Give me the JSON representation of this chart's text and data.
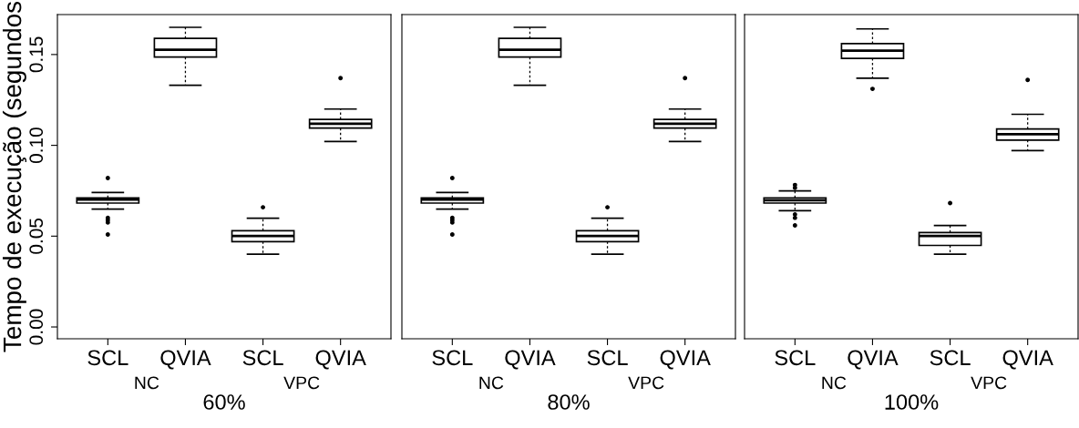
{
  "chart_data": [
    {
      "type": "box",
      "categories": [
        "SCL",
        "QVIA",
        "SCL",
        "QVIA"
      ],
      "xlabel": "60%",
      "ylabel": "Tempo de execução (segundos",
      "annotations": [
        "NC",
        "VPC"
      ],
      "ylim": [
        -0.0065,
        0.172
      ],
      "yticks": [
        {
          "value": 0,
          "label": "0.00"
        },
        {
          "value": 0.05,
          "label": "0.05"
        },
        {
          "value": 0.1,
          "label": "0.10"
        },
        {
          "value": 0.15,
          "label": "0.15"
        }
      ],
      "grid": false,
      "boxes": [
        {
          "low": 0.0649,
          "q1": 0.0682,
          "median": 0.0701,
          "q3": 0.0711,
          "high": 0.074,
          "outliers": [
            0.082,
            0.0601,
            0.0588,
            0.0575,
            0.0509
          ]
        },
        {
          "low": 0.1331,
          "q1": 0.1486,
          "median": 0.1526,
          "q3": 0.1589,
          "high": 0.165
        },
        {
          "low": 0.0401,
          "q1": 0.047,
          "median": 0.0501,
          "q3": 0.053,
          "high": 0.0599,
          "outliers": [
            0.0659
          ]
        },
        {
          "low": 0.1021,
          "q1": 0.1095,
          "median": 0.1119,
          "q3": 0.1143,
          "high": 0.12,
          "outliers": [
            0.137
          ]
        }
      ]
    },
    {
      "type": "box",
      "categories": [
        "SCL",
        "QVIA",
        "SCL",
        "QVIA"
      ],
      "xlabel": "80%",
      "annotations": [
        "NC",
        "VPC"
      ],
      "ylim": [
        -0.0065,
        0.172
      ],
      "tick_labels": "x",
      "grid": false,
      "boxes": [
        {
          "low": 0.0649,
          "q1": 0.0682,
          "median": 0.0701,
          "q3": 0.0711,
          "high": 0.074,
          "outliers": [
            0.082,
            0.0601,
            0.0588,
            0.0575,
            0.0509
          ]
        },
        {
          "low": 0.1331,
          "q1": 0.1486,
          "median": 0.1526,
          "q3": 0.1589,
          "high": 0.165
        },
        {
          "low": 0.0401,
          "q1": 0.047,
          "median": 0.0501,
          "q3": 0.053,
          "high": 0.0599,
          "outliers": [
            0.0659
          ]
        },
        {
          "low": 0.1021,
          "q1": 0.1095,
          "median": 0.1119,
          "q3": 0.1143,
          "high": 0.12,
          "outliers": [
            0.137
          ]
        }
      ]
    },
    {
      "type": "box",
      "categories": [
        "SCL",
        "QVIA",
        "SCL",
        "QVIA"
      ],
      "xlabel": "100%",
      "annotations": [
        "NC",
        "VPC"
      ],
      "ylim": [
        -0.0065,
        0.172
      ],
      "tick_labels": "x",
      "grid": false,
      "boxes": [
        {
          "low": 0.064,
          "q1": 0.0682,
          "median": 0.0698,
          "q3": 0.0711,
          "high": 0.0749,
          "outliers": [
            0.0782,
            0.0766,
            0.062,
            0.0601,
            0.0559
          ]
        },
        {
          "low": 0.137,
          "q1": 0.1479,
          "median": 0.1521,
          "q3": 0.156,
          "high": 0.1641,
          "outliers": [
            0.1311
          ]
        },
        {
          "low": 0.0401,
          "q1": 0.0449,
          "median": 0.0501,
          "q3": 0.052,
          "high": 0.0559,
          "outliers": [
            0.0682
          ]
        },
        {
          "low": 0.0971,
          "q1": 0.1029,
          "median": 0.1061,
          "q3": 0.109,
          "high": 0.1171,
          "outliers": [
            0.136
          ]
        }
      ]
    }
  ]
}
